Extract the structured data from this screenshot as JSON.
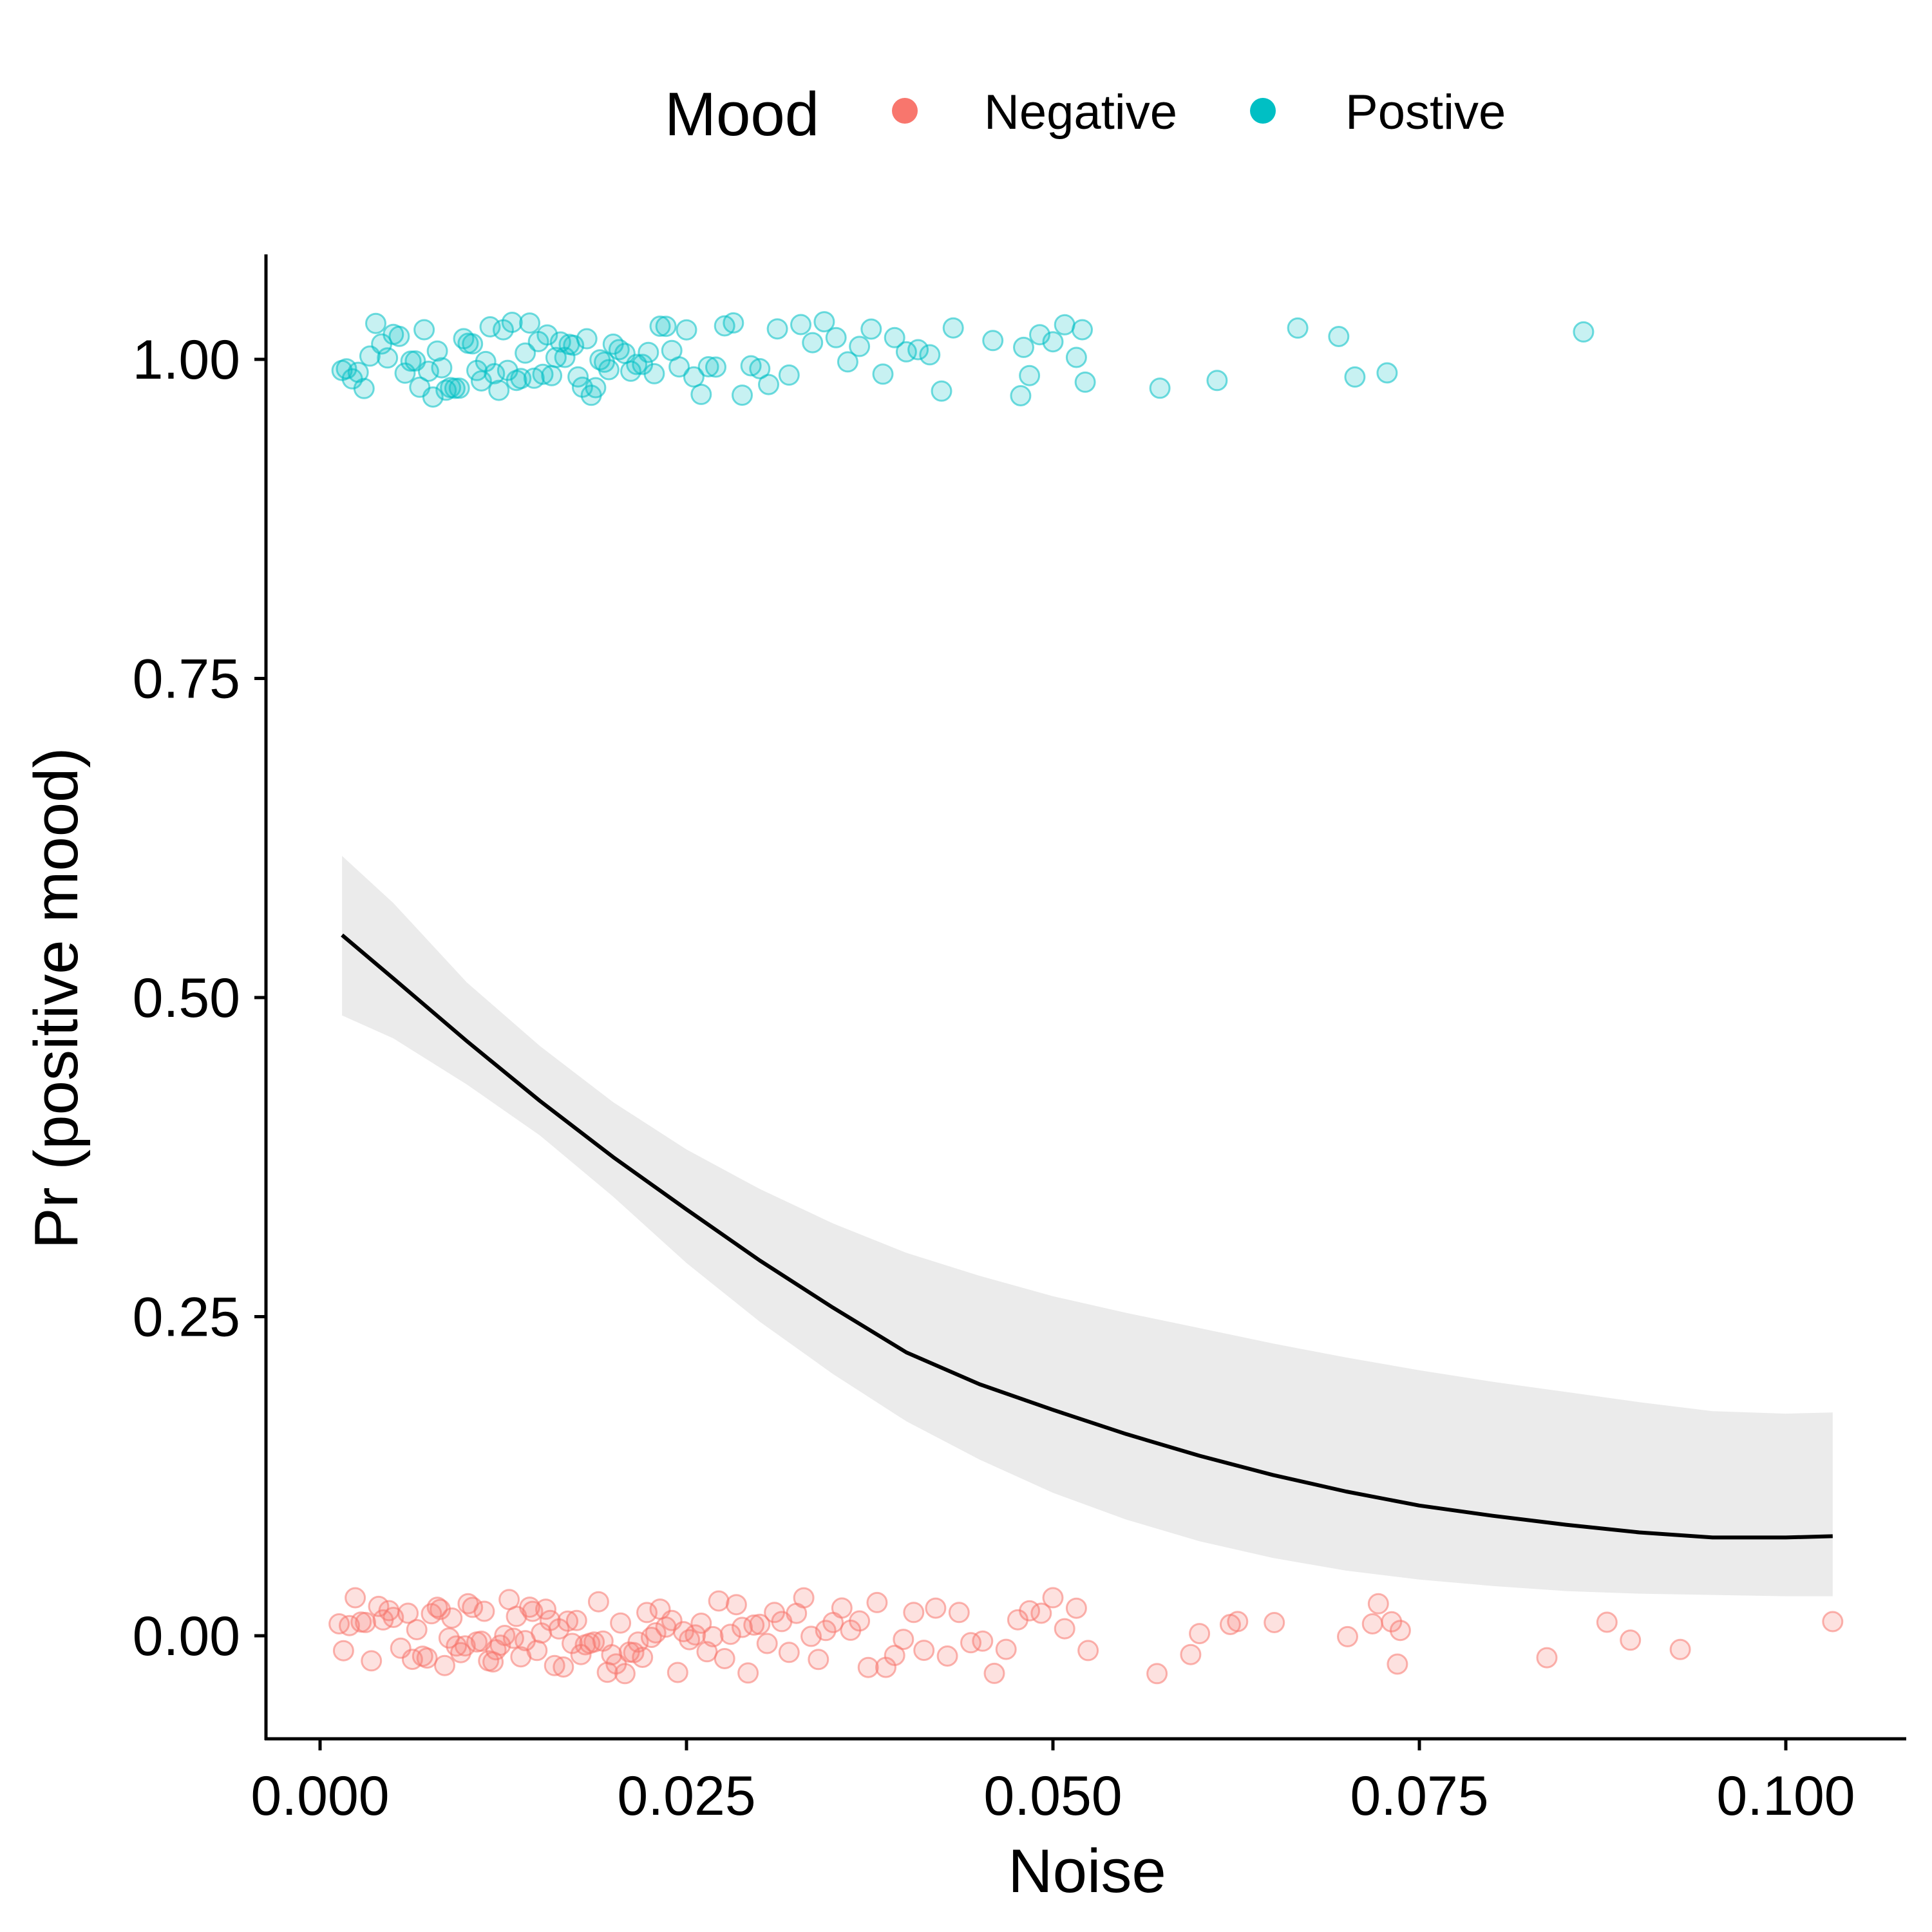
{
  "chart_data": {
    "type": "scatter",
    "title": "",
    "xlabel": "Noise",
    "ylabel": "Pr (positive mood)",
    "xlim": [
      -0.0037,
      0.1083
    ],
    "ylim": [
      -0.083,
      1.083
    ],
    "x_ticks": [
      0.0,
      0.025,
      0.05,
      0.075,
      0.1
    ],
    "x_tick_labels": [
      "0.000",
      "0.025",
      "0.050",
      "0.075",
      "0.100"
    ],
    "y_ticks": [
      0.0,
      0.25,
      0.5,
      0.75,
      1.0
    ],
    "y_tick_labels": [
      "0.00",
      "0.25",
      "0.50",
      "0.75",
      "1.00"
    ],
    "grid": false,
    "legend": {
      "title": "Mood",
      "position": "top",
      "entries": [
        {
          "label": "Negative",
          "color": "#F8766D"
        },
        {
          "label": "Postive",
          "color": "#00BFC4"
        }
      ]
    },
    "series": [
      {
        "name": "Negative",
        "kind": "jittered-points",
        "color": "#F8766D",
        "y_level": 0,
        "x_values": [
          0.0013,
          0.0016,
          0.002,
          0.0024,
          0.0028,
          0.0031,
          0.0035,
          0.004,
          0.0043,
          0.0047,
          0.005,
          0.0055,
          0.006,
          0.0063,
          0.0066,
          0.007,
          0.0073,
          0.0076,
          0.008,
          0.0082,
          0.0085,
          0.0088,
          0.009,
          0.0093,
          0.0096,
          0.0099,
          0.0101,
          0.0104,
          0.0107,
          0.011,
          0.0112,
          0.0115,
          0.0118,
          0.012,
          0.0123,
          0.0126,
          0.0129,
          0.0132,
          0.0134,
          0.0137,
          0.014,
          0.0143,
          0.0145,
          0.0148,
          0.0151,
          0.0154,
          0.0157,
          0.016,
          0.0163,
          0.0166,
          0.0169,
          0.0172,
          0.0175,
          0.0178,
          0.0181,
          0.0184,
          0.0187,
          0.019,
          0.0193,
          0.0196,
          0.0199,
          0.0202,
          0.0205,
          0.0208,
          0.0211,
          0.0214,
          0.0217,
          0.022,
          0.0223,
          0.0226,
          0.0229,
          0.0232,
          0.0236,
          0.024,
          0.0244,
          0.0248,
          0.0252,
          0.0256,
          0.026,
          0.0264,
          0.0268,
          0.0272,
          0.0276,
          0.028,
          0.0284,
          0.0288,
          0.0292,
          0.0296,
          0.03,
          0.0305,
          0.031,
          0.0315,
          0.032,
          0.0325,
          0.033,
          0.0335,
          0.034,
          0.0345,
          0.035,
          0.0356,
          0.0362,
          0.0368,
          0.0374,
          0.038,
          0.0386,
          0.0392,
          0.0398,
          0.0405,
          0.0412,
          0.042,
          0.0428,
          0.0436,
          0.0444,
          0.0452,
          0.046,
          0.0468,
          0.0476,
          0.0484,
          0.0492,
          0.05,
          0.0508,
          0.0516,
          0.0524,
          0.0571,
          0.0594,
          0.06,
          0.0621,
          0.0626,
          0.0651,
          0.0701,
          0.0718,
          0.0722,
          0.0731,
          0.0735,
          0.0737,
          0.0837,
          0.0878,
          0.0894,
          0.0928,
          0.1032
        ]
      },
      {
        "name": "Postive",
        "kind": "jittered-points",
        "color": "#00BFC4",
        "y_level": 1,
        "x_values": [
          0.0015,
          0.0018,
          0.0022,
          0.0026,
          0.003,
          0.0034,
          0.0038,
          0.0042,
          0.0046,
          0.005,
          0.0054,
          0.0058,
          0.0062,
          0.0065,
          0.0068,
          0.0071,
          0.0074,
          0.0077,
          0.008,
          0.0083,
          0.0086,
          0.0089,
          0.0092,
          0.0095,
          0.0098,
          0.0101,
          0.0104,
          0.0107,
          0.011,
          0.0113,
          0.0116,
          0.0119,
          0.0122,
          0.0125,
          0.0128,
          0.0131,
          0.0134,
          0.0137,
          0.014,
          0.0143,
          0.0146,
          0.0149,
          0.0152,
          0.0155,
          0.0158,
          0.0161,
          0.0164,
          0.0167,
          0.017,
          0.0173,
          0.0176,
          0.0179,
          0.0182,
          0.0185,
          0.0188,
          0.0191,
          0.0194,
          0.0197,
          0.02,
          0.0204,
          0.0208,
          0.0212,
          0.0216,
          0.022,
          0.0224,
          0.0228,
          0.0232,
          0.0236,
          0.024,
          0.0245,
          0.025,
          0.0255,
          0.026,
          0.0265,
          0.027,
          0.0276,
          0.0282,
          0.0288,
          0.0294,
          0.03,
          0.0306,
          0.0312,
          0.032,
          0.0328,
          0.0336,
          0.0344,
          0.0352,
          0.036,
          0.0368,
          0.0376,
          0.0384,
          0.0392,
          0.04,
          0.0408,
          0.0416,
          0.0424,
          0.0432,
          0.0459,
          0.0478,
          0.048,
          0.0484,
          0.0491,
          0.05,
          0.0508,
          0.0516,
          0.052,
          0.0522,
          0.0573,
          0.0612,
          0.0667,
          0.0695,
          0.0706,
          0.0728,
          0.0862
        ]
      },
      {
        "name": "",
        "kind": "fitted-curve",
        "color": "#000000",
        "x": [
          0.0015,
          0.005,
          0.01,
          0.015,
          0.02,
          0.025,
          0.03,
          0.035,
          0.04,
          0.045,
          0.05,
          0.055,
          0.06,
          0.065,
          0.07,
          0.075,
          0.08,
          0.085,
          0.09,
          0.095,
          0.1,
          0.1032
        ],
        "y": [
          0.549,
          0.515,
          0.466,
          0.419,
          0.375,
          0.334,
          0.294,
          0.257,
          0.222,
          0.197,
          0.177,
          0.158,
          0.141,
          0.126,
          0.113,
          0.102,
          0.094,
          0.087,
          0.081,
          0.077,
          0.077,
          0.078
        ],
        "ci_lower": [
          0.486,
          0.468,
          0.432,
          0.392,
          0.344,
          0.292,
          0.246,
          0.205,
          0.168,
          0.138,
          0.112,
          0.091,
          0.074,
          0.061,
          0.051,
          0.044,
          0.039,
          0.035,
          0.033,
          0.032,
          0.031,
          0.031
        ],
        "ci_upper": [
          0.611,
          0.574,
          0.512,
          0.462,
          0.418,
          0.381,
          0.35,
          0.323,
          0.3,
          0.282,
          0.266,
          0.253,
          0.241,
          0.229,
          0.218,
          0.208,
          0.199,
          0.191,
          0.183,
          0.176,
          0.174,
          0.175
        ]
      }
    ]
  }
}
